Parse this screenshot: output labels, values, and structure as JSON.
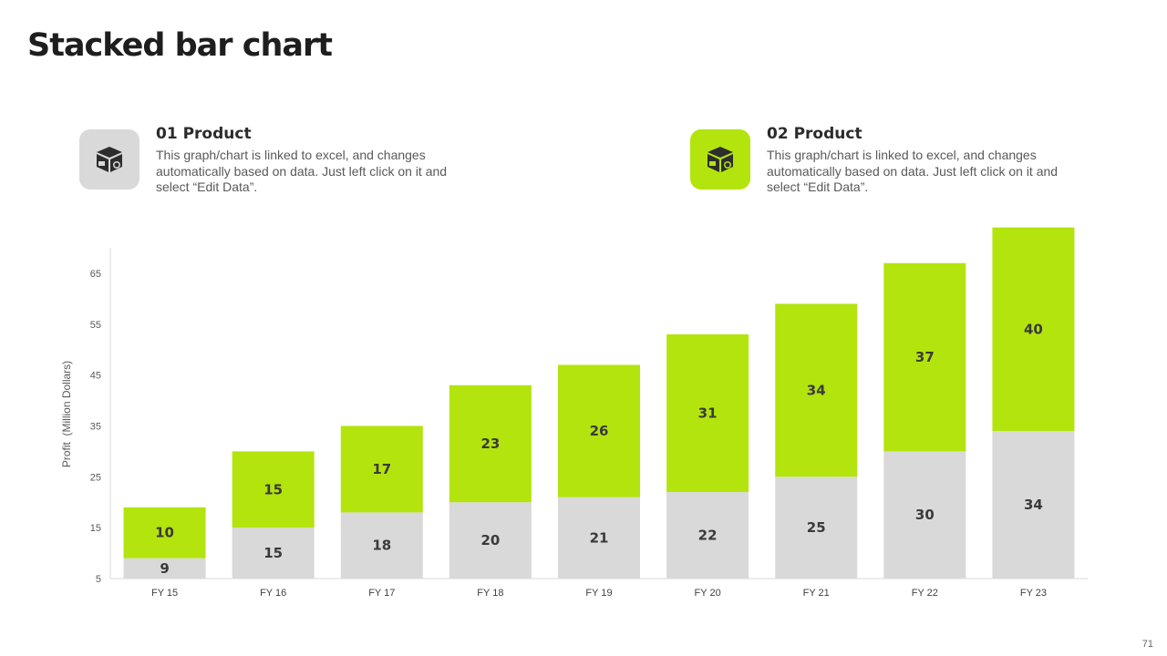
{
  "title": "Stacked bar chart",
  "colors": {
    "accent": "#b3e40e",
    "neutral": "#d9d9d9",
    "dark": "#333333"
  },
  "products": [
    {
      "title": "01 Product",
      "icon": "box-icon",
      "color": "#d9d9d9",
      "description": "This graph/chart is linked to excel, and changes automatically based on data. Just left click on it and select “Edit Data”."
    },
    {
      "title": "02 Product",
      "icon": "box-icon",
      "color": "#b3e40e",
      "description": "This graph/chart is linked to excel, and changes automatically based on data. Just left click on it and select “Edit Data”."
    }
  ],
  "chart_data": {
    "type": "bar",
    "stacked": true,
    "title": "",
    "xlabel": "",
    "ylabel": "Profit  (Million Dollars)",
    "categories": [
      "FY 15",
      "FY 16",
      "FY 17",
      "FY 18",
      "FY 19",
      "FY 20",
      "FY 21",
      "FY 22",
      "FY 23"
    ],
    "series": [
      {
        "color": "#d9d9d9",
        "values": [
          9,
          15,
          18,
          20,
          21,
          22,
          25,
          30,
          34
        ]
      },
      {
        "color": "#b3e40e",
        "values": [
          10,
          15,
          17,
          23,
          26,
          31,
          34,
          37,
          40
        ]
      }
    ],
    "ylim": [
      5,
      70
    ],
    "yticks": [
      5,
      15,
      25,
      35,
      45,
      55,
      65
    ],
    "grid": false,
    "legend": "none"
  },
  "page_number": "71"
}
